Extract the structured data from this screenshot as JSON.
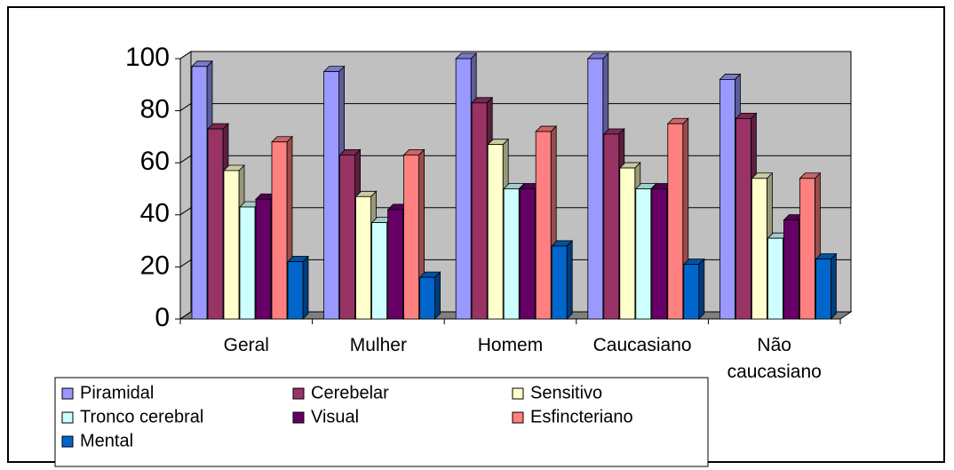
{
  "chart_data": {
    "type": "bar3d",
    "categories": [
      "Geral",
      "Mulher",
      "Homem",
      "Caucasiano",
      "Não caucasiano"
    ],
    "series": [
      {
        "name": "Piramidal",
        "color": "#9999ff",
        "values": [
          97,
          95,
          100,
          100,
          92
        ]
      },
      {
        "name": "Cerebelar",
        "color": "#993366",
        "values": [
          73,
          63,
          83,
          71,
          77
        ]
      },
      {
        "name": "Sensitivo",
        "color": "#ffffcc",
        "values": [
          57,
          47,
          67,
          58,
          54
        ]
      },
      {
        "name": "Tronco cerebral",
        "color": "#ccffff",
        "values": [
          43,
          37,
          50,
          50,
          31
        ]
      },
      {
        "name": "Visual",
        "color": "#660066",
        "values": [
          46,
          42,
          50,
          50,
          38
        ]
      },
      {
        "name": "Esfincteriano",
        "color": "#ff8080",
        "values": [
          68,
          63,
          72,
          75,
          54
        ]
      },
      {
        "name": "Mental",
        "color": "#0066cc",
        "values": [
          22,
          16,
          28,
          21,
          23
        ]
      }
    ],
    "ylim": [
      0,
      100
    ],
    "yticks": [
      0,
      20,
      40,
      60,
      80,
      100
    ],
    "grid": true,
    "legend": "bottom"
  }
}
